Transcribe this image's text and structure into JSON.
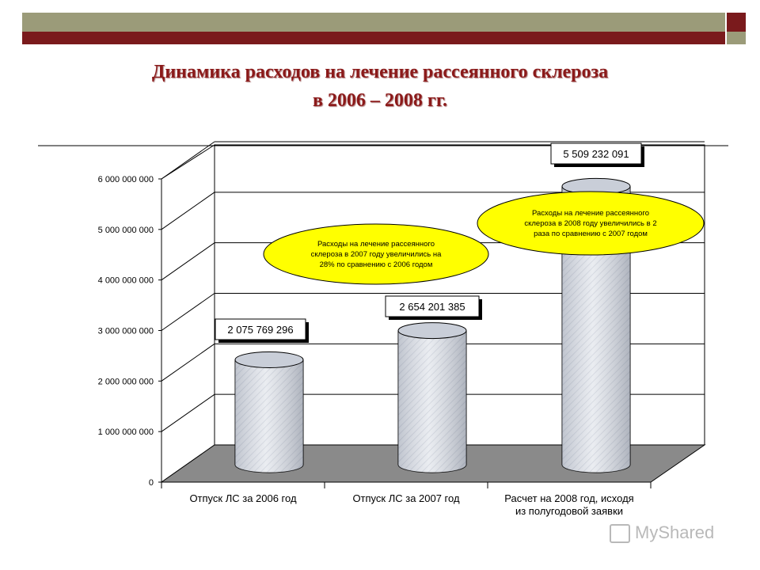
{
  "header": {
    "title_line1": "Динамика расходов на лечение рассеянного склероза",
    "title_line2": "в 2006 – 2008 гг."
  },
  "chart_data": {
    "type": "bar",
    "categories": [
      "Отпуск ЛС за 2006 год",
      "Отпуск ЛС за 2007 год",
      "Расчет на 2008 год, исходя|из полугодовой заявки"
    ],
    "values": [
      2075769296,
      2654201385,
      5509232091
    ],
    "data_labels": [
      "2 075 769 296",
      "2 654 201 385",
      "5 509 232 091"
    ],
    "ylim": [
      0,
      6000000000
    ],
    "yticks": [
      "0",
      "1 000 000 000",
      "2 000 000 000",
      "3 000 000 000",
      "4 000 000 000",
      "5 000 000 000",
      "6 000 000 000"
    ],
    "grid": true,
    "callouts": [
      {
        "text": [
          "Расходы на лечение рассеянного",
          "склероза в 2007 году увеличились на",
          "28% по сравнению с 2006 годом"
        ]
      },
      {
        "text": [
          "Расходы на лечение рассеянного",
          "склероза в 2008 году увеличились в 2",
          "раза по сравнению с 2007 годом"
        ]
      }
    ],
    "colors": {
      "bar": "#d9dde6",
      "ellipse": "#ffff00",
      "floor": "#8a8a8a"
    }
  },
  "watermark": "MyShared"
}
